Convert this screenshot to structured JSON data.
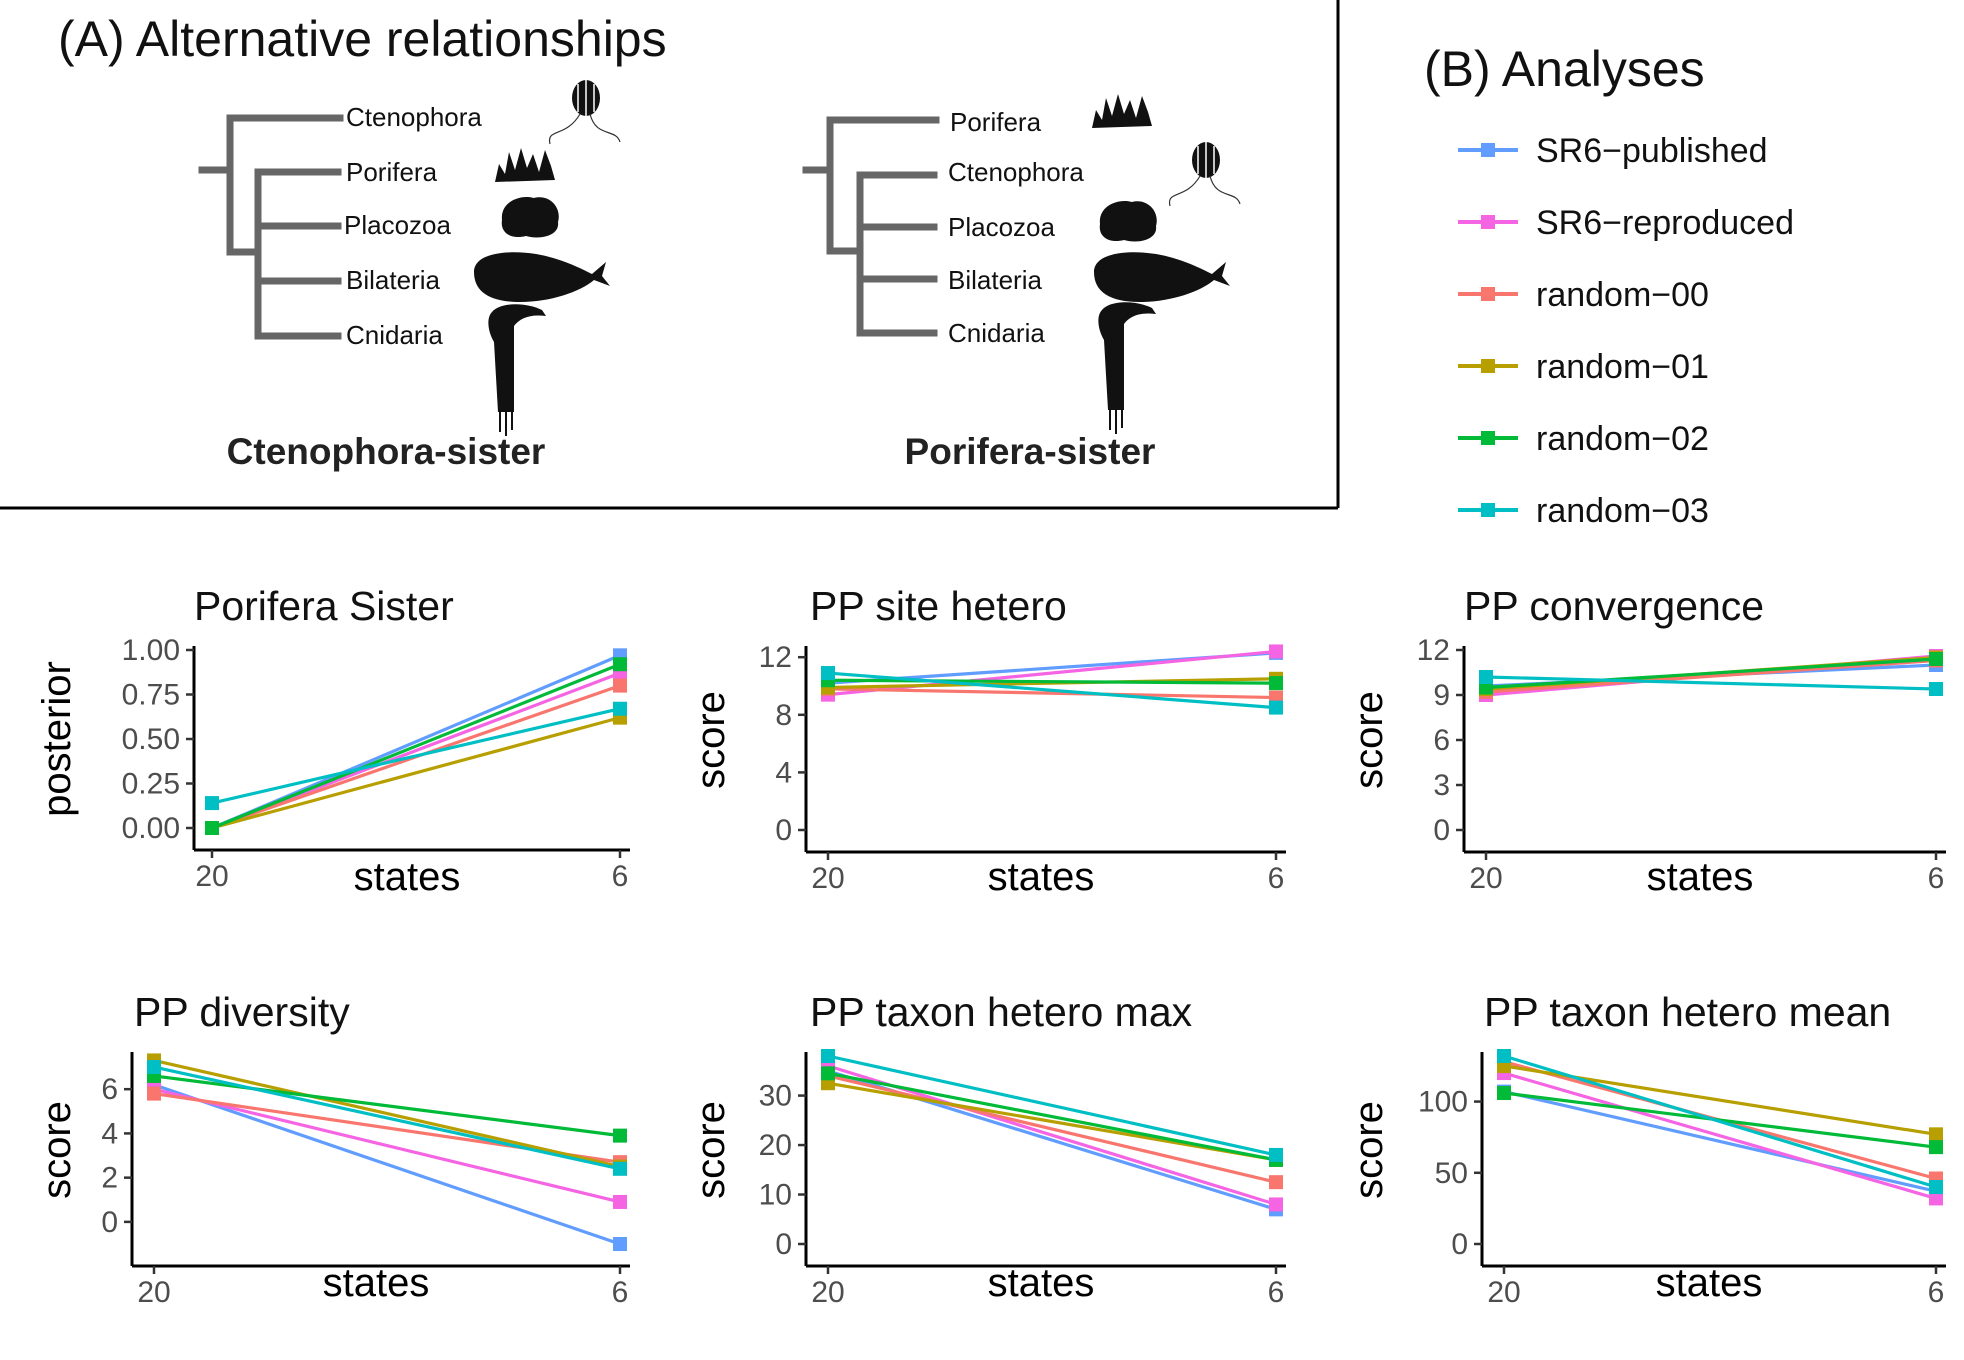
{
  "panel_a": {
    "heading": "(A) Alternative relationships",
    "trees": [
      {
        "title": "Ctenophora-sister",
        "taxa": [
          "Ctenophora",
          "Porifera",
          "Placozoa",
          "Bilateria",
          "Cnidaria"
        ]
      },
      {
        "title": "Porifera-sister",
        "taxa": [
          "Porifera",
          "Ctenophora",
          "Placozoa",
          "Bilateria",
          "Cnidaria"
        ]
      }
    ],
    "silhouette_icons": [
      "comb-jelly-icon",
      "sponge-icon",
      "placozoan-icon",
      "whale-icon",
      "sea-anemone-icon"
    ]
  },
  "panel_b": {
    "heading": "(B) Analyses",
    "legend": [
      {
        "name": "SR6−published",
        "color": "#619CFF"
      },
      {
        "name": "SR6−reproduced",
        "color": "#F564E3"
      },
      {
        "name": "random−00",
        "color": "#F8766D"
      },
      {
        "name": "random−01",
        "color": "#B79F00"
      },
      {
        "name": "random−02",
        "color": "#00BA38"
      },
      {
        "name": "random−03",
        "color": "#00BFC4"
      }
    ]
  },
  "chart_data": [
    {
      "type": "line",
      "title": "Porifera Sister",
      "xlabel": "states",
      "ylabel": "posterior",
      "categories": [
        "20",
        "6"
      ],
      "ylim": [
        0,
        1.0
      ],
      "yticks": [
        "0.00",
        "0.25",
        "0.50",
        "0.75",
        "1.00"
      ],
      "series": [
        {
          "name": "SR6−published",
          "values": [
            0.0,
            0.97
          ]
        },
        {
          "name": "SR6−reproduced",
          "values": [
            0.0,
            0.87
          ]
        },
        {
          "name": "random−00",
          "values": [
            0.0,
            0.8
          ]
        },
        {
          "name": "random−01",
          "values": [
            0.0,
            0.62
          ]
        },
        {
          "name": "random−02",
          "values": [
            0.0,
            0.92
          ]
        },
        {
          "name": "random−03",
          "values": [
            0.14,
            0.67
          ]
        }
      ]
    },
    {
      "type": "line",
      "title": "PP site hetero",
      "xlabel": "states",
      "ylabel": "score",
      "categories": [
        "20",
        "6"
      ],
      "ylim": [
        0,
        12.5
      ],
      "yticks": [
        "0",
        "4",
        "8",
        "12"
      ],
      "series": [
        {
          "name": "SR6−published",
          "values": [
            10.2,
            12.3
          ]
        },
        {
          "name": "SR6−reproduced",
          "values": [
            9.4,
            12.4
          ]
        },
        {
          "name": "random−00",
          "values": [
            9.8,
            9.2
          ]
        },
        {
          "name": "random−01",
          "values": [
            9.9,
            10.5
          ]
        },
        {
          "name": "random−02",
          "values": [
            10.4,
            10.2
          ]
        },
        {
          "name": "random−03",
          "values": [
            10.9,
            8.5
          ]
        }
      ]
    },
    {
      "type": "line",
      "title": "PP convergence",
      "xlabel": "states",
      "ylabel": "score",
      "categories": [
        "20",
        "6"
      ],
      "ylim": [
        0,
        12
      ],
      "yticks": [
        "0",
        "3",
        "6",
        "9",
        "12"
      ],
      "series": [
        {
          "name": "SR6−published",
          "values": [
            9.6,
            11.0
          ]
        },
        {
          "name": "SR6−reproduced",
          "values": [
            9.0,
            11.6
          ]
        },
        {
          "name": "random−00",
          "values": [
            9.2,
            11.3
          ]
        },
        {
          "name": "random−01",
          "values": [
            9.4,
            11.5
          ]
        },
        {
          "name": "random−02",
          "values": [
            9.5,
            11.4
          ]
        },
        {
          "name": "random−03",
          "values": [
            10.2,
            9.4
          ]
        }
      ]
    },
    {
      "type": "line",
      "title": "PP diversity",
      "xlabel": "states",
      "ylabel": "score",
      "categories": [
        "20",
        "6"
      ],
      "ylim": [
        -1,
        7.5
      ],
      "yticks": [
        "0",
        "2",
        "4",
        "6"
      ],
      "series": [
        {
          "name": "SR6−published",
          "values": [
            6.2,
            -1.0
          ]
        },
        {
          "name": "SR6−reproduced",
          "values": [
            6.0,
            0.9
          ]
        },
        {
          "name": "random−00",
          "values": [
            5.8,
            2.7
          ]
        },
        {
          "name": "random−01",
          "values": [
            7.3,
            2.5
          ]
        },
        {
          "name": "random−02",
          "values": [
            6.6,
            3.9
          ]
        },
        {
          "name": "random−03",
          "values": [
            7.0,
            2.4
          ]
        }
      ]
    },
    {
      "type": "line",
      "title": "PP taxon hetero max",
      "xlabel": "states",
      "ylabel": "score",
      "categories": [
        "20",
        "6"
      ],
      "ylim": [
        0,
        38
      ],
      "yticks": [
        "0",
        "10",
        "20",
        "30"
      ],
      "series": [
        {
          "name": "SR6−published",
          "values": [
            35.0,
            7.0
          ]
        },
        {
          "name": "SR6−reproduced",
          "values": [
            36.0,
            8.0
          ]
        },
        {
          "name": "random−00",
          "values": [
            34.0,
            12.5
          ]
        },
        {
          "name": "random−01",
          "values": [
            32.5,
            17.0
          ]
        },
        {
          "name": "random−02",
          "values": [
            34.5,
            17.0
          ]
        },
        {
          "name": "random−03",
          "values": [
            38.0,
            18.0
          ]
        }
      ]
    },
    {
      "type": "line",
      "title": "PP taxon hetero mean",
      "xlabel": "states",
      "ylabel": "score",
      "categories": [
        "20",
        "6"
      ],
      "ylim": [
        0,
        132
      ],
      "yticks": [
        "0",
        "50",
        "100"
      ],
      "series": [
        {
          "name": "SR6−published",
          "values": [
            107,
            37
          ]
        },
        {
          "name": "SR6−reproduced",
          "values": [
            120,
            32
          ]
        },
        {
          "name": "random−00",
          "values": [
            128,
            46
          ]
        },
        {
          "name": "random−01",
          "values": [
            125,
            77
          ]
        },
        {
          "name": "random−02",
          "values": [
            106,
            68
          ]
        },
        {
          "name": "random−03",
          "values": [
            132,
            40
          ]
        }
      ]
    }
  ]
}
